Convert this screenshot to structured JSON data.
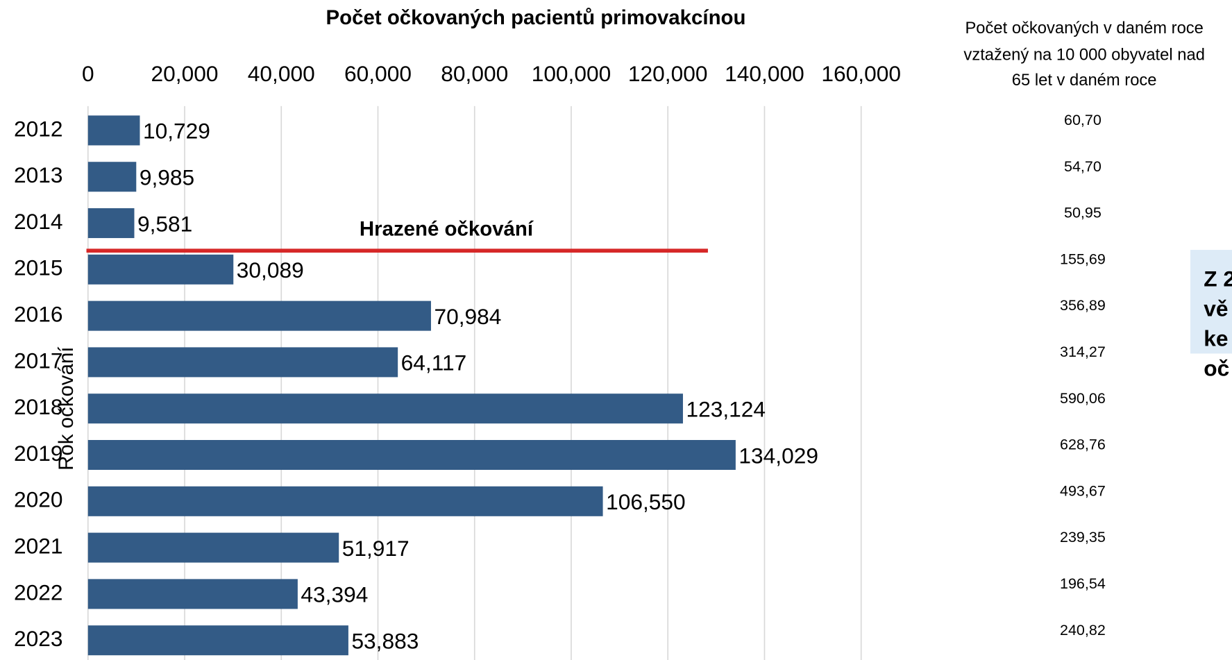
{
  "chart_data": {
    "type": "bar",
    "orientation": "horizontal",
    "title": "Počet očkovaných pacientů primovakcínou",
    "y_label": "Rok očkování",
    "categories": [
      "2012",
      "2013",
      "2014",
      "2015",
      "2016",
      "2017",
      "2018",
      "2019",
      "2020",
      "2021",
      "2022",
      "2023"
    ],
    "values": [
      10729,
      9985,
      9581,
      30089,
      70984,
      64117,
      123124,
      134029,
      106550,
      51917,
      43394,
      53883
    ],
    "value_labels": [
      "10,729",
      "9,985",
      "9,581",
      "30,089",
      "70,984",
      "64,117",
      "123,124",
      "134,029",
      "106,550",
      "51,917",
      "43,394",
      "53,883"
    ],
    "color": "#335b86",
    "xlim": [
      0,
      160000
    ],
    "xticks": [
      0,
      {
        "value": 20000,
        "label": "20,000"
      },
      {
        "value": 40000,
        "label": "40,000"
      },
      {
        "value": 60000,
        "label": "60,000"
      },
      {
        "value": 80000,
        "label": "80,000"
      },
      {
        "value": 100000,
        "label": "100,000"
      },
      {
        "value": 120000,
        "label": "120,000"
      },
      {
        "value": 140000,
        "label": "140,000"
      },
      {
        "value": 160000,
        "label": "160,000"
      }
    ],
    "grid": true,
    "annotation": "Hrazené očkování",
    "rate_column": {
      "header": [
        "Počet očkovaných v daném roce",
        "vztažený na 10 000 obyvatel nad",
        "65 let v daném roce"
      ],
      "values": [
        "60,70",
        "54,70",
        "50,95",
        "155,69",
        "356,89",
        "314,27",
        "590,06",
        "628,76",
        "493,67",
        "239,35",
        "196,54",
        "240,82"
      ]
    },
    "callout": [
      "Z 2",
      "vě",
      "ke",
      "oč"
    ]
  }
}
